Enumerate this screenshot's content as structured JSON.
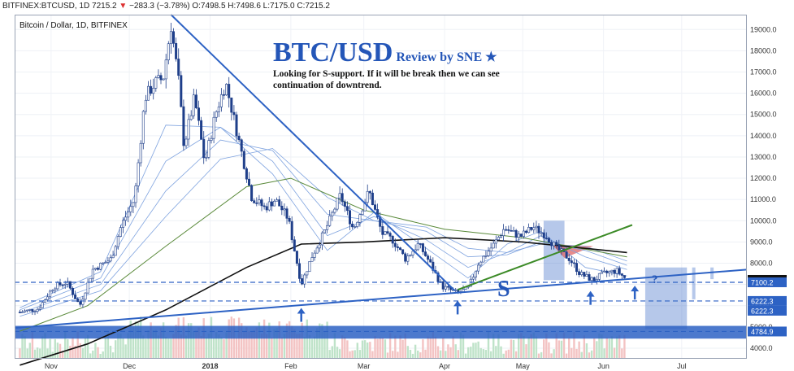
{
  "header": {
    "symbol": "BITFINEX:BTCUSD, 1D",
    "last": "7215.2",
    "change": "−283.3 (−3.78%)",
    "ohlc": "O:7498.5 H:7498.6 L:7175.0 C:7215.2"
  },
  "chart_title": "Bitcoin / Dollar, 1D, BITFINEX",
  "annotation": {
    "title": "BTC/USD",
    "subtitle": "Review by SNE",
    "star": "★",
    "text": "Looking for S-support. If it will be break then we can see continuation of downtrend.",
    "s_label": "S",
    "question": "?"
  },
  "chart_data": {
    "type": "candlestick",
    "title": "Bitcoin / Dollar, 1D, BITFINEX",
    "x_labels": [
      "Nov",
      "Dec",
      "2018",
      "Feb",
      "Mar",
      "Apr",
      "May",
      "Jun",
      "Jul"
    ],
    "y_ticks": [
      4000,
      5000,
      6000,
      7000,
      8000,
      9000,
      10000,
      11000,
      12000,
      13000,
      14000,
      15000,
      16000,
      17000,
      18000,
      19000
    ],
    "ylim": [
      3500,
      19700
    ],
    "price_badges": [
      {
        "label": "7215.2",
        "value": 7215.2,
        "color": "#111111"
      },
      {
        "label": "7100.2",
        "value": 7100.2,
        "color": "#2d62c4"
      },
      {
        "label": "6222.3",
        "value": 6222.3,
        "color": "#2d62c4"
      },
      {
        "label": "6222.3",
        "value": 6222.3,
        "color": "#2d62c4"
      },
      {
        "label": "4784.9",
        "value": 4784.9,
        "color": "#2d62c4"
      }
    ],
    "close_path": [
      [
        "2017-10-20",
        5700
      ],
      [
        "2017-10-27",
        5850
      ],
      [
        "2017-11-02",
        6900
      ],
      [
        "2017-11-07",
        7100
      ],
      [
        "2017-11-12",
        6000
      ],
      [
        "2017-11-17",
        7700
      ],
      [
        "2017-11-24",
        8200
      ],
      [
        "2017-11-28",
        9800
      ],
      [
        "2017-12-03",
        11000
      ],
      [
        "2017-12-07",
        15800
      ],
      [
        "2017-12-11",
        16500
      ],
      [
        "2017-12-14",
        16700
      ],
      [
        "2017-12-17",
        19200
      ],
      [
        "2017-12-20",
        16500
      ],
      [
        "2017-12-22",
        13500
      ],
      [
        "2017-12-26",
        15800
      ],
      [
        "2017-12-30",
        12700
      ],
      [
        "2018-01-03",
        15000
      ],
      [
        "2018-01-07",
        16500
      ],
      [
        "2018-01-12",
        13800
      ],
      [
        "2018-01-17",
        11100
      ],
      [
        "2018-01-22",
        10600
      ],
      [
        "2018-01-26",
        11000
      ],
      [
        "2018-01-31",
        10100
      ],
      [
        "2018-02-05",
        7000
      ],
      [
        "2018-02-09",
        8300
      ],
      [
        "2018-02-14",
        9500
      ],
      [
        "2018-02-20",
        11200
      ],
      [
        "2018-02-25",
        9600
      ],
      [
        "2018-03-03",
        11400
      ],
      [
        "2018-03-08",
        9400
      ],
      [
        "2018-03-12",
        9100
      ],
      [
        "2018-03-17",
        8200
      ],
      [
        "2018-03-22",
        8900
      ],
      [
        "2018-03-26",
        8100
      ],
      [
        "2018-03-31",
        6900
      ],
      [
        "2018-04-06",
        6600
      ],
      [
        "2018-04-10",
        6800
      ],
      [
        "2018-04-14",
        8000
      ],
      [
        "2018-04-20",
        8900
      ],
      [
        "2018-04-24",
        9650
      ],
      [
        "2018-04-30",
        9250
      ],
      [
        "2018-05-05",
        9700
      ],
      [
        "2018-05-10",
        9300
      ],
      [
        "2018-05-14",
        8700
      ],
      [
        "2018-05-19",
        8200
      ],
      [
        "2018-05-23",
        7500
      ],
      [
        "2018-05-28",
        7200
      ],
      [
        "2018-06-01",
        7500
      ],
      [
        "2018-06-06",
        7650
      ],
      [
        "2018-06-10",
        7215
      ]
    ],
    "moving_average_200": [
      [
        "2017-10-20",
        3200
      ],
      [
        "2017-11-15",
        4200
      ],
      [
        "2017-12-15",
        5800
      ],
      [
        "2018-01-15",
        7800
      ],
      [
        "2018-02-05",
        8900
      ],
      [
        "2018-03-01",
        9000
      ],
      [
        "2018-04-01",
        9200
      ],
      [
        "2018-05-01",
        9000
      ],
      [
        "2018-06-10",
        8500
      ]
    ],
    "moving_average_100": [
      [
        "2017-10-20",
        4800
      ],
      [
        "2017-11-15",
        6000
      ],
      [
        "2017-12-15",
        8800
      ],
      [
        "2018-01-15",
        11600
      ],
      [
        "2018-02-01",
        12000
      ],
      [
        "2018-03-01",
        10500
      ],
      [
        "2018-04-01",
        9600
      ],
      [
        "2018-05-01",
        9200
      ],
      [
        "2018-06-10",
        8300
      ]
    ],
    "ribbon_series": [
      [
        [
          "2017-10-20",
          5900
        ],
        [
          "2017-11-20",
          7600
        ],
        [
          "2017-12-15",
          14500
        ],
        [
          "2018-01-05",
          14400
        ],
        [
          "2018-01-25",
          12200
        ],
        [
          "2018-02-15",
          8600
        ],
        [
          "2018-03-05",
          10400
        ],
        [
          "2018-03-25",
          8700
        ],
        [
          "2018-04-10",
          7300
        ],
        [
          "2018-04-25",
          8900
        ],
        [
          "2018-05-08",
          9500
        ],
        [
          "2018-05-25",
          7800
        ],
        [
          "2018-06-10",
          7400
        ]
      ],
      [
        [
          "2017-10-20",
          5800
        ],
        [
          "2017-11-20",
          7300
        ],
        [
          "2017-12-15",
          12800
        ],
        [
          "2018-01-05",
          14400
        ],
        [
          "2018-01-25",
          12800
        ],
        [
          "2018-02-15",
          9300
        ],
        [
          "2018-03-05",
          10200
        ],
        [
          "2018-03-25",
          9100
        ],
        [
          "2018-04-10",
          7800
        ],
        [
          "2018-04-25",
          8500
        ],
        [
          "2018-05-08",
          9300
        ],
        [
          "2018-05-25",
          8300
        ],
        [
          "2018-06-10",
          7700
        ]
      ],
      [
        [
          "2017-10-20",
          5650
        ],
        [
          "2017-11-20",
          7000
        ],
        [
          "2017-12-15",
          11400
        ],
        [
          "2018-01-05",
          13800
        ],
        [
          "2018-01-25",
          13300
        ],
        [
          "2018-02-15",
          10300
        ],
        [
          "2018-03-05",
          10000
        ],
        [
          "2018-03-25",
          9500
        ],
        [
          "2018-04-10",
          8300
        ],
        [
          "2018-04-25",
          8400
        ],
        [
          "2018-05-08",
          9000
        ],
        [
          "2018-05-25",
          8600
        ],
        [
          "2018-06-10",
          7900
        ]
      ],
      [
        [
          "2017-10-20",
          5500
        ],
        [
          "2017-11-20",
          6700
        ],
        [
          "2017-12-15",
          10200
        ],
        [
          "2018-01-05",
          12900
        ],
        [
          "2018-01-25",
          13400
        ],
        [
          "2018-02-15",
          11100
        ],
        [
          "2018-03-05",
          10000
        ],
        [
          "2018-03-25",
          9700
        ],
        [
          "2018-04-10",
          8700
        ],
        [
          "2018-04-25",
          8500
        ],
        [
          "2018-05-08",
          8900
        ],
        [
          "2018-05-25",
          8800
        ],
        [
          "2018-06-10",
          8100
        ]
      ]
    ],
    "trendlines": [
      {
        "from": [
          "2017-12-17",
          19700
        ],
        "to": [
          "2018-04-05",
          6700
        ],
        "color": "#2d62c4"
      },
      {
        "from": [
          "2017-10-18",
          4950
        ],
        "to": [
          "2018-07-26",
          7700
        ],
        "color": "#2d62c4"
      },
      {
        "from": [
          "2018-04-06",
          6750
        ],
        "to": [
          "2018-06-12",
          9800
        ],
        "color": "#3b8a26"
      }
    ],
    "horizontal_lines": [
      {
        "value": 7100.2,
        "style": "dashed"
      },
      {
        "value": 6222.3,
        "style": "dashed"
      },
      {
        "value": 4784.9,
        "style": "dashed"
      }
    ],
    "zone": {
      "from": 4450,
      "to": 5050
    },
    "support_arrows": [
      {
        "date": "2018-02-05",
        "value": 5700
      },
      {
        "date": "2018-04-06",
        "value": 6050
      },
      {
        "date": "2018-05-27",
        "value": 6500
      },
      {
        "date": "2018-06-13",
        "value": 6750
      }
    ],
    "volume_bars": true
  }
}
